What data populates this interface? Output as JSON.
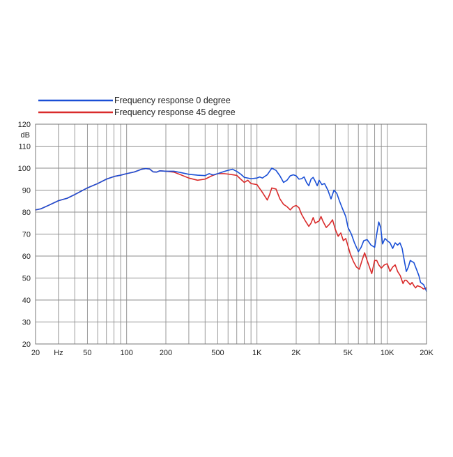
{
  "chart_data": {
    "type": "line",
    "title": "",
    "xlabel": "",
    "ylabel": "dB",
    "x_scale": "log",
    "xlim": [
      20,
      20000
    ],
    "ylim": [
      20,
      120
    ],
    "grid": true,
    "legend_position": "top-left",
    "x_ticks": [
      {
        "value": 20,
        "label": "20"
      },
      {
        "value": 30,
        "label": "Hz"
      },
      {
        "value": 50,
        "label": "50"
      },
      {
        "value": 100,
        "label": "100"
      },
      {
        "value": 200,
        "label": "200"
      },
      {
        "value": 500,
        "label": "500"
      },
      {
        "value": 1000,
        "label": "1K"
      },
      {
        "value": 2000,
        "label": "2K"
      },
      {
        "value": 5000,
        "label": "5K"
      },
      {
        "value": 10000,
        "label": "10K"
      },
      {
        "value": 20000,
        "label": "20K"
      }
    ],
    "y_ticks": [
      {
        "value": 120,
        "label": "120"
      },
      {
        "value": 110,
        "label": "110"
      },
      {
        "value": 100,
        "label": "100"
      },
      {
        "value": 90,
        "label": "90"
      },
      {
        "value": 80,
        "label": "80"
      },
      {
        "value": 70,
        "label": "70"
      },
      {
        "value": 60,
        "label": "60"
      },
      {
        "value": 50,
        "label": "50"
      },
      {
        "value": 40,
        "label": "40"
      },
      {
        "value": 30,
        "label": "30"
      },
      {
        "value": 20,
        "label": "20"
      }
    ],
    "minor_x_gridlines": [
      30,
      40,
      60,
      70,
      80,
      90,
      300,
      400,
      600,
      700,
      800,
      900,
      3000,
      4000,
      6000,
      7000,
      8000,
      9000
    ],
    "series": [
      {
        "name": "Frequency response 0 degree",
        "color": "#1a4fd6",
        "points": [
          [
            20,
            81
          ],
          [
            22,
            81.5
          ],
          [
            25,
            83
          ],
          [
            30,
            85.2
          ],
          [
            35,
            86.3
          ],
          [
            40,
            88
          ],
          [
            50,
            91
          ],
          [
            60,
            93
          ],
          [
            70,
            95
          ],
          [
            80,
            96.2
          ],
          [
            90,
            96.8
          ],
          [
            100,
            97.5
          ],
          [
            115,
            98.3
          ],
          [
            130,
            99.5
          ],
          [
            140,
            99.8
          ],
          [
            150,
            99.6
          ],
          [
            160,
            98.3
          ],
          [
            170,
            98.2
          ],
          [
            180,
            98.8
          ],
          [
            200,
            98.6
          ],
          [
            230,
            98.6
          ],
          [
            260,
            98
          ],
          [
            300,
            97.2
          ],
          [
            350,
            96.8
          ],
          [
            400,
            96.6
          ],
          [
            430,
            97.5
          ],
          [
            460,
            96.9
          ],
          [
            500,
            97.5
          ],
          [
            560,
            98.5
          ],
          [
            600,
            99
          ],
          [
            650,
            99.5
          ],
          [
            700,
            98.5
          ],
          [
            750,
            97.3
          ],
          [
            800,
            95.8
          ],
          [
            900,
            95.2
          ],
          [
            1000,
            95.5
          ],
          [
            1050,
            96
          ],
          [
            1100,
            95.5
          ],
          [
            1200,
            97
          ],
          [
            1300,
            100
          ],
          [
            1400,
            99
          ],
          [
            1500,
            96.5
          ],
          [
            1600,
            93.5
          ],
          [
            1700,
            94.5
          ],
          [
            1800,
            96.5
          ],
          [
            1900,
            97
          ],
          [
            2000,
            96.5
          ],
          [
            2100,
            95
          ],
          [
            2200,
            95.2
          ],
          [
            2300,
            96
          ],
          [
            2400,
            93.5
          ],
          [
            2500,
            92
          ],
          [
            2600,
            95
          ],
          [
            2700,
            95.8
          ],
          [
            2800,
            94
          ],
          [
            2900,
            92
          ],
          [
            3000,
            94.5
          ],
          [
            3150,
            92.5
          ],
          [
            3300,
            93
          ],
          [
            3500,
            90
          ],
          [
            3700,
            86
          ],
          [
            3900,
            90
          ],
          [
            4100,
            88.5
          ],
          [
            4300,
            85
          ],
          [
            4500,
            82
          ],
          [
            4800,
            78
          ],
          [
            5000,
            73
          ],
          [
            5300,
            70
          ],
          [
            5600,
            66
          ],
          [
            6000,
            62
          ],
          [
            6300,
            64
          ],
          [
            6600,
            67
          ],
          [
            7000,
            67.5
          ],
          [
            7500,
            65
          ],
          [
            8000,
            64
          ],
          [
            8300,
            70
          ],
          [
            8600,
            75.5
          ],
          [
            8900,
            73
          ],
          [
            9200,
            65.5
          ],
          [
            9600,
            68
          ],
          [
            10000,
            67
          ],
          [
            10500,
            66
          ],
          [
            11000,
            63.5
          ],
          [
            11500,
            66
          ],
          [
            12000,
            65
          ],
          [
            12500,
            66
          ],
          [
            13000,
            63.5
          ],
          [
            13500,
            58
          ],
          [
            14000,
            53
          ],
          [
            14500,
            55
          ],
          [
            15000,
            58
          ],
          [
            16000,
            57
          ],
          [
            17000,
            53
          ],
          [
            17500,
            51
          ],
          [
            18000,
            48
          ],
          [
            19000,
            47
          ],
          [
            20000,
            44
          ]
        ]
      },
      {
        "name": "Frequency response 45 degree",
        "color": "#d92b2b",
        "points": [
          [
            20,
            81
          ],
          [
            22,
            81.5
          ],
          [
            25,
            83
          ],
          [
            30,
            85.2
          ],
          [
            35,
            86.3
          ],
          [
            40,
            88
          ],
          [
            50,
            91
          ],
          [
            60,
            93
          ],
          [
            70,
            95
          ],
          [
            80,
            96.2
          ],
          [
            90,
            96.8
          ],
          [
            100,
            97.5
          ],
          [
            115,
            98.3
          ],
          [
            130,
            99.5
          ],
          [
            140,
            99.8
          ],
          [
            150,
            99.6
          ],
          [
            160,
            98.3
          ],
          [
            170,
            98.2
          ],
          [
            180,
            98.8
          ],
          [
            200,
            98.6
          ],
          [
            230,
            98.2
          ],
          [
            260,
            97
          ],
          [
            300,
            95.5
          ],
          [
            350,
            94.5
          ],
          [
            400,
            95
          ],
          [
            450,
            96.5
          ],
          [
            500,
            97.5
          ],
          [
            560,
            97.5
          ],
          [
            600,
            97.3
          ],
          [
            650,
            97
          ],
          [
            700,
            96.7
          ],
          [
            750,
            95
          ],
          [
            800,
            93.5
          ],
          [
            850,
            94.5
          ],
          [
            900,
            93
          ],
          [
            1000,
            92.5
          ],
          [
            1100,
            89
          ],
          [
            1200,
            85.5
          ],
          [
            1250,
            88
          ],
          [
            1300,
            91
          ],
          [
            1400,
            90.5
          ],
          [
            1500,
            86
          ],
          [
            1600,
            83.5
          ],
          [
            1700,
            82.5
          ],
          [
            1800,
            81
          ],
          [
            1900,
            82.5
          ],
          [
            2000,
            83
          ],
          [
            2100,
            82
          ],
          [
            2200,
            79
          ],
          [
            2350,
            76
          ],
          [
            2500,
            73.5
          ],
          [
            2600,
            75
          ],
          [
            2700,
            77.5
          ],
          [
            2800,
            75
          ],
          [
            3000,
            76
          ],
          [
            3100,
            78
          ],
          [
            3200,
            76
          ],
          [
            3400,
            73
          ],
          [
            3600,
            74.5
          ],
          [
            3800,
            76.5
          ],
          [
            4000,
            72
          ],
          [
            4200,
            69
          ],
          [
            4400,
            70.5
          ],
          [
            4600,
            67
          ],
          [
            4800,
            68
          ],
          [
            5000,
            64.5
          ],
          [
            5200,
            61
          ],
          [
            5500,
            57.5
          ],
          [
            5800,
            55
          ],
          [
            6100,
            54
          ],
          [
            6400,
            58
          ],
          [
            6700,
            61.5
          ],
          [
            7000,
            58
          ],
          [
            7300,
            55
          ],
          [
            7600,
            52
          ],
          [
            8000,
            58
          ],
          [
            8300,
            58
          ],
          [
            8600,
            56
          ],
          [
            9000,
            54.5
          ],
          [
            9500,
            56
          ],
          [
            10000,
            56.5
          ],
          [
            10500,
            53
          ],
          [
            11000,
            55
          ],
          [
            11500,
            56
          ],
          [
            12000,
            53
          ],
          [
            12600,
            51
          ],
          [
            13200,
            47.5
          ],
          [
            13600,
            49
          ],
          [
            14000,
            49
          ],
          [
            14500,
            48
          ],
          [
            15000,
            47
          ],
          [
            15500,
            48
          ],
          [
            16000,
            46.5
          ],
          [
            16500,
            45.5
          ],
          [
            17000,
            46.5
          ],
          [
            18000,
            46
          ],
          [
            19000,
            45
          ],
          [
            20000,
            45.5
          ]
        ]
      }
    ]
  }
}
